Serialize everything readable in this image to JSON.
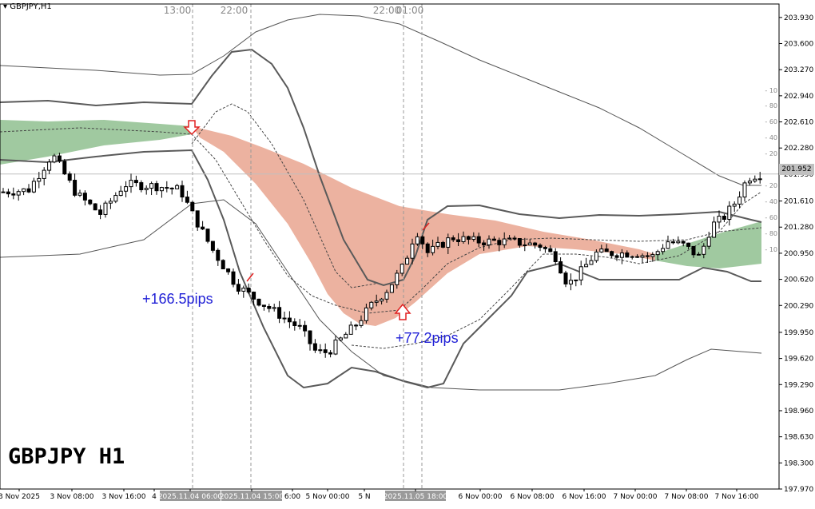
{
  "window": {
    "title": "GBPJPY,H1",
    "symbol_label": "GBPJPY H1",
    "current_price": "201.952"
  },
  "annotations": {
    "pips_1": "+166.5pips",
    "pips_2": "+77.2pips",
    "top_times": [
      "13:00",
      "22:00",
      "22:00",
      "01:00"
    ]
  },
  "colors": {
    "bull_candle": "#ffffff",
    "bear_candle": "#000000",
    "cloud_bear": "#e9a58f",
    "cloud_bull": "#8fbf8f",
    "bands": "#5a5a5a",
    "pips_text": "#1f1fd6",
    "arrow": "#e02020"
  },
  "chart_data": {
    "type": "candlestick",
    "timeframe": "H1",
    "ylim": [
      197.97,
      204.1
    ],
    "y_ticks": [
      "203.930",
      "203.600",
      "203.270",
      "202.940",
      "202.610",
      "202.280",
      "201.950",
      "201.610",
      "201.280",
      "200.950",
      "200.620",
      "200.290",
      "199.950",
      "199.620",
      "199.290",
      "198.960",
      "198.630",
      "198.300",
      "197.970"
    ],
    "x_ticks": [
      "3 Nov 2025",
      "3 Nov 08:00",
      "3 Nov 16:00",
      "4",
      "2025.11.04 06:00",
      "2025.11.04 15:00",
      "6:00",
      "5 Nov 00:00",
      "5 N",
      "2025.11.05 18:00",
      "6 Nov 00:00",
      "6 Nov 08:00",
      "6 Nov 16:00",
      "7 Nov 00:00",
      "7 Nov 08:00",
      "7 Nov 16:00"
    ],
    "highlighted_x_ticks": [
      "2025.11.04 06:00",
      "2025.11.04 15:00",
      "2025.11.05 18:00"
    ],
    "sub_scale": [
      "10",
      "80",
      "60",
      "40",
      "20",
      "20",
      "40",
      "60",
      "80",
      "10"
    ],
    "current_price": 201.952
  }
}
